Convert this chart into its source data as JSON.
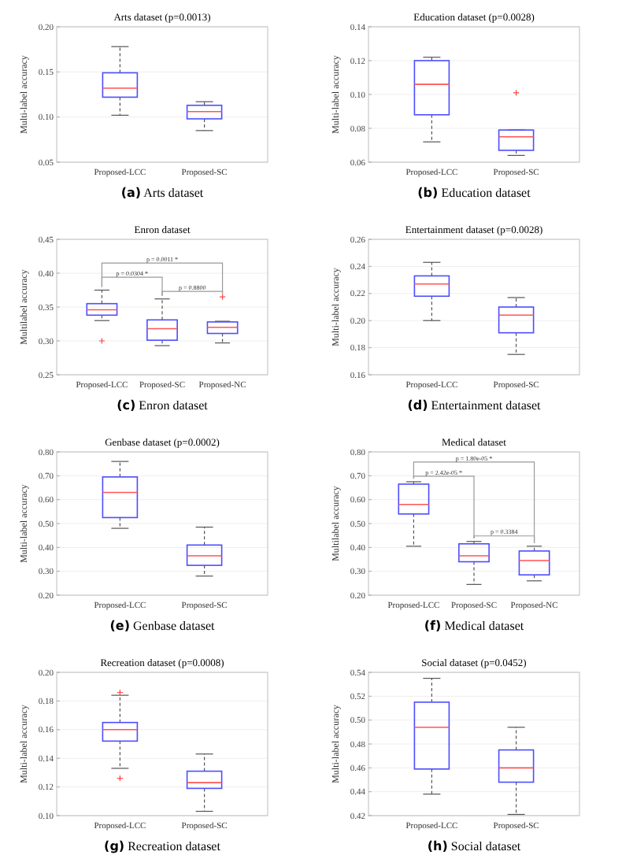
{
  "chart_data": [
    {
      "type": "box",
      "title": "Arts dataset (p=0.0013)",
      "ylabel": "Multi-label accuracy",
      "categories": [
        "Proposed-LCC",
        "Proposed-SC"
      ],
      "ylim": [
        0.05,
        0.2
      ],
      "yticks": [
        {
          "value": 0.05,
          "label": "0.05"
        },
        {
          "value": 0.1,
          "label": "0.10"
        },
        {
          "value": 0.15,
          "label": "0.15"
        },
        {
          "value": 0.2,
          "label": "0.20"
        }
      ],
      "grid": true,
      "annotations": [
        "(a) Arts dataset"
      ],
      "series": [
        {
          "color": "#4d4dff",
          "boxes": [
            {
              "low": 0.102,
              "q1": 0.122,
              "median": 0.132,
              "q3": 0.149,
              "high": 0.178
            },
            {
              "low": 0.085,
              "q1": 0.098,
              "median": 0.106,
              "q3": 0.113,
              "high": 0.117
            }
          ]
        }
      ]
    },
    {
      "type": "box",
      "title": "Education dataset (p=0.0028)",
      "ylabel": "Multi-label accuracy",
      "categories": [
        "Proposed-LCC",
        "Proposed-SC"
      ],
      "ylim": [
        0.06,
        0.14
      ],
      "yticks": [
        {
          "value": 0.06,
          "label": "0.06"
        },
        {
          "value": 0.08,
          "label": "0.08"
        },
        {
          "value": 0.1,
          "label": "0.10"
        },
        {
          "value": 0.12,
          "label": "0.12"
        },
        {
          "value": 0.14,
          "label": "0.14"
        }
      ],
      "grid": true,
      "annotations": [
        "(b) Education dataset"
      ],
      "series": [
        {
          "color": "#4d4dff",
          "boxes": [
            {
              "low": 0.072,
              "q1": 0.088,
              "median": 0.106,
              "q3": 0.12,
              "high": 0.122
            },
            {
              "low": 0.064,
              "q1": 0.067,
              "median": 0.075,
              "q3": 0.079,
              "high": 0.079,
              "outliers": [
                0.101
              ]
            }
          ]
        }
      ]
    },
    {
      "type": "box",
      "title": "Enron dataset",
      "ylabel": "Multilabel accuracy",
      "categories": [
        "Proposed-LCC",
        "Proposed-SC",
        "Proposed-NC"
      ],
      "ylim": [
        0.25,
        0.45
      ],
      "yticks": [
        {
          "value": 0.25,
          "label": "0.25"
        },
        {
          "value": 0.3,
          "label": "0.30"
        },
        {
          "value": 0.35,
          "label": "0.35"
        },
        {
          "value": 0.4,
          "label": "0.40"
        },
        {
          "value": 0.45,
          "label": "0.45"
        }
      ],
      "grid": true,
      "annotations": [
        "p = 0.0011 *",
        "p = 0.0304 *",
        "p = 0.8800",
        "(c) Enron dataset"
      ],
      "series": [
        {
          "color": "#4d4dff",
          "boxes": [
            {
              "low": 0.33,
              "q1": 0.338,
              "median": 0.346,
              "q3": 0.355,
              "high": 0.375,
              "outliers": [
                0.3
              ]
            },
            {
              "low": 0.293,
              "q1": 0.301,
              "median": 0.318,
              "q3": 0.331,
              "high": 0.362
            },
            {
              "low": 0.297,
              "q1": 0.311,
              "median": 0.32,
              "q3": 0.328,
              "high": 0.329,
              "outliers": [
                0.365
              ]
            }
          ]
        }
      ]
    },
    {
      "type": "box",
      "title": "Entertainment dataset (p=0.0028)",
      "ylabel": "Multi-label accuracy",
      "categories": [
        "Proposed-LCC",
        "Proposed-SC"
      ],
      "ylim": [
        0.16,
        0.26
      ],
      "yticks": [
        {
          "value": 0.16,
          "label": "0.16"
        },
        {
          "value": 0.18,
          "label": "0.18"
        },
        {
          "value": 0.2,
          "label": "0.20"
        },
        {
          "value": 0.22,
          "label": "0.22"
        },
        {
          "value": 0.24,
          "label": "0.24"
        },
        {
          "value": 0.26,
          "label": "0.26"
        }
      ],
      "grid": true,
      "annotations": [
        "(d) Entertainment dataset"
      ],
      "series": [
        {
          "color": "#4d4dff",
          "boxes": [
            {
              "low": 0.2,
              "q1": 0.218,
              "median": 0.227,
              "q3": 0.233,
              "high": 0.243
            },
            {
              "low": 0.175,
              "q1": 0.191,
              "median": 0.204,
              "q3": 0.21,
              "high": 0.217
            }
          ]
        }
      ]
    },
    {
      "type": "box",
      "title": "Genbase dataset (p=0.0002)",
      "ylabel": "Multi-label accuracy",
      "categories": [
        "Proposed-LCC",
        "Proposed-SC"
      ],
      "ylim": [
        0.2,
        0.8
      ],
      "yticks": [
        {
          "value": 0.2,
          "label": "0.20"
        },
        {
          "value": 0.3,
          "label": "0.30"
        },
        {
          "value": 0.4,
          "label": "0.40"
        },
        {
          "value": 0.5,
          "label": "0.50"
        },
        {
          "value": 0.6,
          "label": "0.60"
        },
        {
          "value": 0.7,
          "label": "0.70"
        },
        {
          "value": 0.8,
          "label": "0.80"
        }
      ],
      "grid": true,
      "annotations": [
        "(e) Genbase dataset"
      ],
      "series": [
        {
          "color": "#4d4dff",
          "boxes": [
            {
              "low": 0.48,
              "q1": 0.525,
              "median": 0.63,
              "q3": 0.695,
              "high": 0.76
            },
            {
              "low": 0.28,
              "q1": 0.325,
              "median": 0.365,
              "q3": 0.41,
              "high": 0.485
            }
          ]
        }
      ]
    },
    {
      "type": "box",
      "title": "Medical dataset",
      "ylabel": "Multilabel accuracy",
      "categories": [
        "Proposed-LCC",
        "Proposed-SC",
        "Proposed-NC"
      ],
      "ylim": [
        0.2,
        0.8
      ],
      "yticks": [
        {
          "value": 0.2,
          "label": "0.20"
        },
        {
          "value": 0.3,
          "label": "0.30"
        },
        {
          "value": 0.4,
          "label": "0.40"
        },
        {
          "value": 0.5,
          "label": "0.50"
        },
        {
          "value": 0.6,
          "label": "0.60"
        },
        {
          "value": 0.7,
          "label": "0.70"
        },
        {
          "value": 0.8,
          "label": "0.80"
        }
      ],
      "grid": true,
      "annotations": [
        "p = 1.80e-05 *",
        "p = 2.42e-05 *",
        "p = 0.3384",
        "(f) Medical dataset"
      ],
      "series": [
        {
          "color": "#4d4dff",
          "boxes": [
            {
              "low": 0.405,
              "q1": 0.54,
              "median": 0.58,
              "q3": 0.665,
              "high": 0.675
            },
            {
              "low": 0.245,
              "q1": 0.34,
              "median": 0.365,
              "q3": 0.415,
              "high": 0.425
            },
            {
              "low": 0.26,
              "q1": 0.285,
              "median": 0.345,
              "q3": 0.385,
              "high": 0.405
            }
          ]
        }
      ]
    },
    {
      "type": "box",
      "title": "Recreation dataset (p=0.0008)",
      "ylabel": "Multi-label accuracy",
      "categories": [
        "Proposed-LCC",
        "Proposed-SC"
      ],
      "ylim": [
        0.1,
        0.2
      ],
      "yticks": [
        {
          "value": 0.1,
          "label": "0.10"
        },
        {
          "value": 0.12,
          "label": "0.12"
        },
        {
          "value": 0.14,
          "label": "0.14"
        },
        {
          "value": 0.16,
          "label": "0.16"
        },
        {
          "value": 0.18,
          "label": "0.18"
        },
        {
          "value": 0.2,
          "label": "0.20"
        }
      ],
      "grid": true,
      "annotations": [
        "(g) Recreation dataset"
      ],
      "series": [
        {
          "color": "#4d4dff",
          "boxes": [
            {
              "low": 0.133,
              "q1": 0.152,
              "median": 0.16,
              "q3": 0.165,
              "high": 0.184,
              "outliers": [
                0.126,
                0.186
              ]
            },
            {
              "low": 0.103,
              "q1": 0.119,
              "median": 0.123,
              "q3": 0.131,
              "high": 0.143
            }
          ]
        }
      ]
    },
    {
      "type": "box",
      "title": "Social dataset (p=0.0452)",
      "ylabel": "Multi-label accuracy",
      "categories": [
        "Proposed-LCC",
        "Proposed-SC"
      ],
      "ylim": [
        0.42,
        0.54
      ],
      "yticks": [
        {
          "value": 0.42,
          "label": "0.42"
        },
        {
          "value": 0.44,
          "label": "0.44"
        },
        {
          "value": 0.46,
          "label": "0.46"
        },
        {
          "value": 0.48,
          "label": "0.48"
        },
        {
          "value": 0.5,
          "label": "0.50"
        },
        {
          "value": 0.52,
          "label": "0.52"
        },
        {
          "value": 0.54,
          "label": "0.54"
        }
      ],
      "grid": true,
      "annotations": [
        "(h) Social dataset"
      ],
      "series": [
        {
          "color": "#4d4dff",
          "boxes": [
            {
              "low": 0.438,
              "q1": 0.459,
              "median": 0.494,
              "q3": 0.515,
              "high": 0.535
            },
            {
              "low": 0.421,
              "q1": 0.448,
              "median": 0.46,
              "q3": 0.475,
              "high": 0.494
            }
          ]
        }
      ]
    }
  ]
}
